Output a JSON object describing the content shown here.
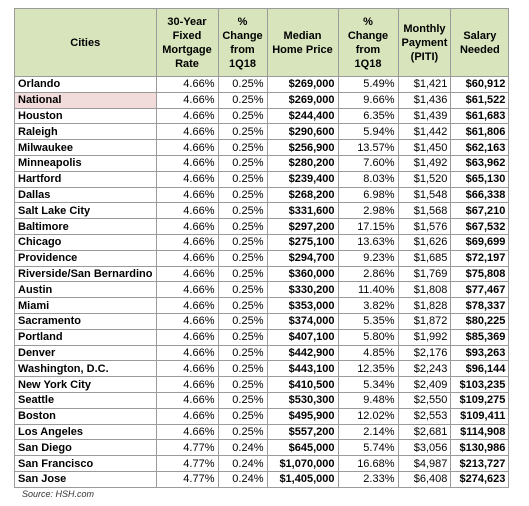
{
  "table": {
    "header": [
      "Cities",
      "30-Year Fixed Mortgage Rate",
      "% Change from 1Q18",
      "Median Home Price",
      "% Change from 1Q18",
      "Monthly Payment (PITI)",
      "Salary Needed"
    ],
    "rows": [
      [
        "Orlando",
        "4.66%",
        "0.25%",
        "$269,000",
        "5.49%",
        "$1,421",
        "$60,912"
      ],
      [
        "National",
        "4.66%",
        "0.25%",
        "$269,000",
        "9.66%",
        "$1,436",
        "$61,522"
      ],
      [
        "Houston",
        "4.66%",
        "0.25%",
        "$244,400",
        "6.35%",
        "$1,439",
        "$61,683"
      ],
      [
        "Raleigh",
        "4.66%",
        "0.25%",
        "$290,600",
        "5.94%",
        "$1,442",
        "$61,806"
      ],
      [
        "Milwaukee",
        "4.66%",
        "0.25%",
        "$256,900",
        "13.57%",
        "$1,450",
        "$62,163"
      ],
      [
        "Minneapolis",
        "4.66%",
        "0.25%",
        "$280,200",
        "7.60%",
        "$1,492",
        "$63,962"
      ],
      [
        "Hartford",
        "4.66%",
        "0.25%",
        "$239,400",
        "8.03%",
        "$1,520",
        "$65,130"
      ],
      [
        "Dallas",
        "4.66%",
        "0.25%",
        "$268,200",
        "6.98%",
        "$1,548",
        "$66,338"
      ],
      [
        "Salt Lake City",
        "4.66%",
        "0.25%",
        "$331,600",
        "2.98%",
        "$1,568",
        "$67,210"
      ],
      [
        "Baltimore",
        "4.66%",
        "0.25%",
        "$297,200",
        "17.15%",
        "$1,576",
        "$67,532"
      ],
      [
        "Chicago",
        "4.66%",
        "0.25%",
        "$275,100",
        "13.63%",
        "$1,626",
        "$69,699"
      ],
      [
        "Providence",
        "4.66%",
        "0.25%",
        "$294,700",
        "9.23%",
        "$1,685",
        "$72,197"
      ],
      [
        "Riverside/San Bernardino",
        "4.66%",
        "0.25%",
        "$360,000",
        "2.86%",
        "$1,769",
        "$75,808"
      ],
      [
        "Austin",
        "4.66%",
        "0.25%",
        "$330,200",
        "11.40%",
        "$1,808",
        "$77,467"
      ],
      [
        "Miami",
        "4.66%",
        "0.25%",
        "$353,000",
        "3.82%",
        "$1,828",
        "$78,337"
      ],
      [
        "Sacramento",
        "4.66%",
        "0.25%",
        "$374,000",
        "5.35%",
        "$1,872",
        "$80,225"
      ],
      [
        "Portland",
        "4.66%",
        "0.25%",
        "$407,100",
        "5.80%",
        "$1,992",
        "$85,369"
      ],
      [
        "Denver",
        "4.66%",
        "0.25%",
        "$442,900",
        "4.85%",
        "$2,176",
        "$93,263"
      ],
      [
        "Washington, D.C.",
        "4.66%",
        "0.25%",
        "$443,100",
        "12.35%",
        "$2,243",
        "$96,144"
      ],
      [
        "New York City",
        "4.66%",
        "0.25%",
        "$410,500",
        "5.34%",
        "$2,409",
        "$103,235"
      ],
      [
        "Seattle",
        "4.66%",
        "0.25%",
        "$530,300",
        "9.48%",
        "$2,550",
        "$109,275"
      ],
      [
        "Boston",
        "4.66%",
        "0.25%",
        "$495,900",
        "12.02%",
        "$2,553",
        "$109,411"
      ],
      [
        "Los Angeles",
        "4.66%",
        "0.25%",
        "$557,200",
        "2.14%",
        "$2,681",
        "$114,908"
      ],
      [
        "San Diego",
        "4.77%",
        "0.24%",
        "$645,000",
        "5.74%",
        "$3,056",
        "$130,986"
      ],
      [
        "San Francisco",
        "4.77%",
        "0.24%",
        "$1,070,000",
        "16.68%",
        "$4,987",
        "$213,727"
      ],
      [
        "San Jose",
        "4.77%",
        "0.24%",
        "$1,405,000",
        "2.33%",
        "$6,408",
        "$274,623"
      ]
    ]
  },
  "source": "Source: HSH.com"
}
